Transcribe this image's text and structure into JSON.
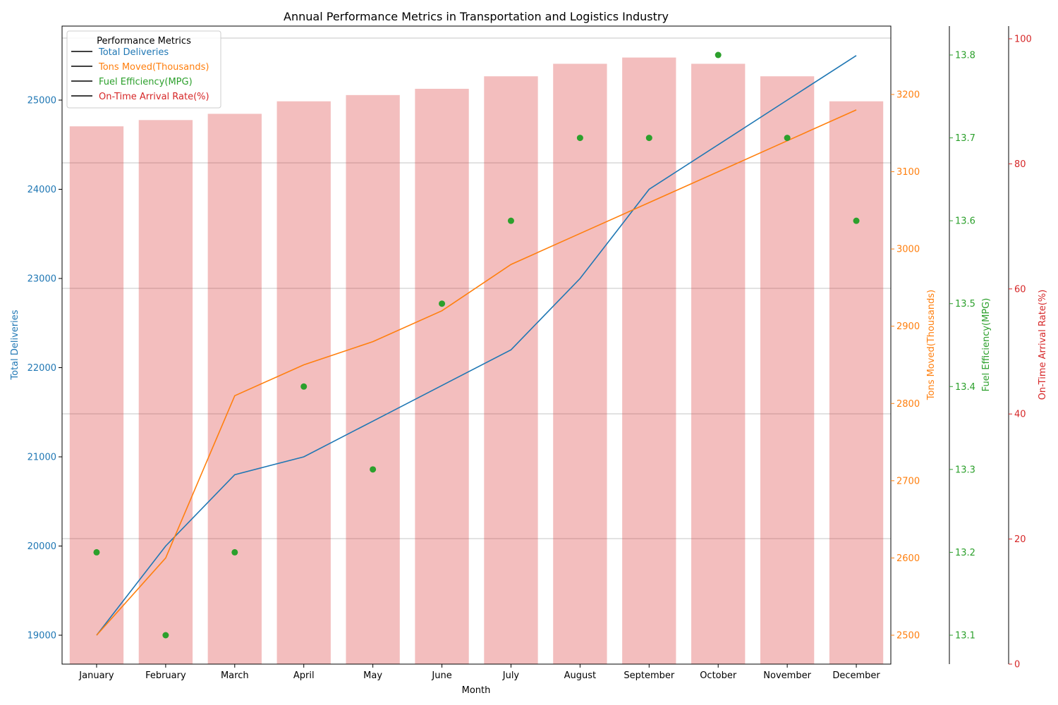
{
  "chart_data": {
    "type": "bar+line+scatter",
    "title": "Annual Performance Metrics in Transportation and Logistics Industry",
    "xlabel": "Month",
    "categories": [
      "January",
      "February",
      "March",
      "April",
      "May",
      "June",
      "July",
      "August",
      "September",
      "October",
      "November",
      "December"
    ],
    "series": [
      {
        "name": "Total Deliveries",
        "kind": "line",
        "axis": "Total Deliveries",
        "color": "#1f77b4",
        "values": [
          19000,
          20000,
          20800,
          21000,
          21400,
          21800,
          22200,
          23000,
          24000,
          24500,
          25000,
          25500
        ]
      },
      {
        "name": "Tons Moved(Thousands)",
        "kind": "line",
        "axis": "Tons Moved(Thousands)",
        "color": "#ff7f0e",
        "values": [
          2500,
          2600,
          2810,
          2850,
          2880,
          2920,
          2980,
          3020,
          3060,
          3100,
          3140,
          3180
        ]
      },
      {
        "name": "Fuel Efficiency(MPG)",
        "kind": "scatter",
        "axis": "Fuel Efficiency(MPG)",
        "color": "#2ca02c",
        "values": [
          13.2,
          13.1,
          13.2,
          13.4,
          13.3,
          13.5,
          13.6,
          13.7,
          13.7,
          13.8,
          13.7,
          13.6
        ]
      },
      {
        "name": "On-Time Arrival Rate(%)",
        "kind": "bar",
        "axis": "On-Time Arrival Rate(%)",
        "color": "#d62728",
        "values": [
          86,
          87,
          88,
          90,
          91,
          92,
          94,
          96,
          97,
          96,
          94,
          90
        ]
      }
    ],
    "axes": [
      {
        "label": "Total Deliveries",
        "color": "#1f77b4",
        "range": [
          18680,
          25800
        ],
        "ticks": [
          19000,
          20000,
          21000,
          22000,
          23000,
          24000,
          25000
        ]
      },
      {
        "label": "Tons Moved(Thousands)",
        "color": "#ff7f0e",
        "range": [
          2463,
          2400.5
        ],
        "ticks": [
          2500,
          2600,
          2700,
          2800,
          2900,
          3000,
          3100,
          3200
        ]
      },
      {
        "label": "Fuel Efficiency(MPG)",
        "color": "#2ca02c",
        "range": [
          13.065,
          13.835
        ],
        "ticks": [
          13.1,
          13.2,
          13.3,
          13.4,
          13.5,
          13.6,
          13.7,
          13.8
        ]
      },
      {
        "label": "On-Time Arrival Rate(%)",
        "color": "#d62728",
        "range": [
          0,
          102
        ],
        "ticks": [
          0,
          20,
          40,
          60,
          80,
          100
        ]
      }
    ],
    "grid": "horizontal",
    "legend": {
      "title": "Performance Metrics",
      "position": "top-left"
    }
  }
}
